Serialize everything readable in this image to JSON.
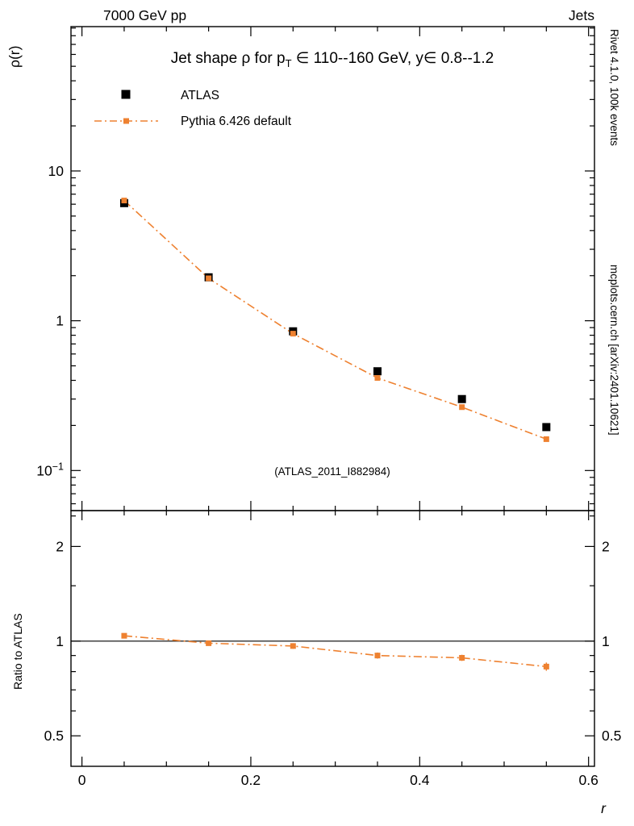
{
  "header": {
    "left": "7000 GeV pp",
    "right": "Jets"
  },
  "title": {
    "pre": "Jet shape ρ for p",
    "sub": "T",
    "post": " ∈ 110--160 GeV, y∈ 0.8--1.2"
  },
  "legend": {
    "atlas": "ATLAS",
    "pythia": "Pythia 6.426 default"
  },
  "watermark": "(ATLAS_2011_I882984)",
  "side_texts": {
    "top": "Rivet 4.1.0,  100k events",
    "bottom": "mcplots.cern.ch [arXiv:2401.10621]"
  },
  "colors": {
    "atlas": "#000000",
    "pythia": "#ee8130",
    "side_text": "#808080",
    "watermark": "#b3b3b3"
  },
  "axes": {
    "x": {
      "label": "r",
      "min": -0.013,
      "max": 0.607,
      "major_ticks": [
        0,
        0.2,
        0.4,
        0.6
      ],
      "tick_labels": [
        "0",
        "0.2",
        "0.4",
        "0.6"
      ]
    },
    "y": {
      "label": "ρ(r)",
      "scale": "log",
      "min": 0.054,
      "max": 92,
      "major_ticks": [
        {
          "v": 10,
          "base": "10",
          "exp": ""
        },
        {
          "v": 1,
          "base": "1",
          "exp": ""
        },
        {
          "v": 0.1,
          "base": "10",
          "exp": "−1"
        }
      ]
    },
    "ratio": {
      "label": "Ratio to ATLAS",
      "scale": "log",
      "min": 0.4,
      "max": 2.6,
      "major_ticks": [
        {
          "v": 2,
          "label": "2"
        },
        {
          "v": 1,
          "label": "1"
        },
        {
          "v": 0.5,
          "label": "0.5"
        }
      ],
      "minor_ticks": [
        0.4,
        0.6,
        0.7,
        0.8,
        0.9,
        1.5,
        2.5
      ]
    }
  },
  "chart_data": [
    {
      "type": "line",
      "title": "Jet shape ρ for pT ∈ 110--160 GeV, y∈ 0.8--1.2",
      "xlabel": "r",
      "ylabel": "ρ(r)",
      "yscale": "log",
      "xlim": [
        -0.013,
        0.607
      ],
      "ylim": [
        0.054,
        92
      ],
      "grid": false,
      "legend_position": "top-left",
      "x": [
        0.05,
        0.15,
        0.25,
        0.35,
        0.45,
        0.55
      ],
      "series": [
        {
          "name": "ATLAS",
          "marker": "filled-square",
          "color": "#000000",
          "values": [
            6.1,
            1.95,
            0.85,
            0.46,
            0.3,
            0.195
          ]
        },
        {
          "name": "Pythia 6.426 default",
          "marker": "filled-square",
          "line": "dash-dot",
          "color": "#ee8130",
          "values": [
            6.35,
            1.92,
            0.82,
            0.415,
            0.265,
            0.162
          ]
        }
      ]
    },
    {
      "type": "line",
      "title": "Ratio to ATLAS",
      "yscale": "log",
      "ylim": [
        0.4,
        2.6
      ],
      "reference_line": 1,
      "x": [
        0.05,
        0.15,
        0.25,
        0.35,
        0.45,
        0.55
      ],
      "series": [
        {
          "name": "Pythia 6.426 default / ATLAS",
          "color": "#ee8130",
          "line": "dash-dot",
          "marker": "filled-square",
          "values": [
            1.04,
            0.985,
            0.965,
            0.9,
            0.885,
            0.83
          ],
          "errors": [
            0.02,
            0.015,
            0.02,
            0.02,
            0.02,
            0.025
          ]
        }
      ]
    }
  ]
}
